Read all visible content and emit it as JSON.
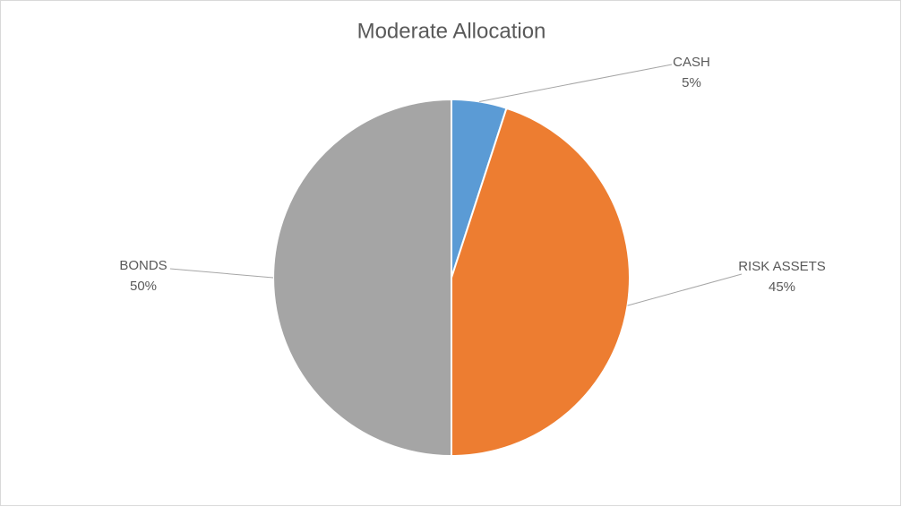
{
  "chart_data": {
    "type": "pie",
    "title": "Moderate Allocation",
    "categories": [
      "CASH",
      "RISK ASSETS",
      "BONDS"
    ],
    "values": [
      5,
      45,
      50
    ],
    "value_labels": [
      "5%",
      "45%",
      "50%"
    ],
    "colors": [
      "#5b9bd5",
      "#ed7d31",
      "#a5a5a5"
    ]
  }
}
